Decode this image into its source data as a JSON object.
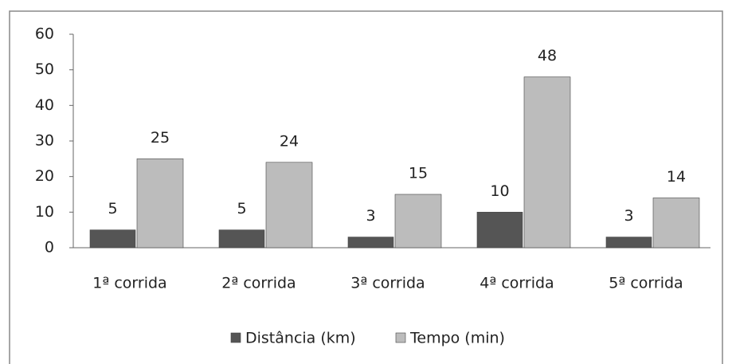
{
  "chart_data": {
    "type": "bar",
    "categories": [
      "1ª corrida",
      "2ª corrida",
      "3ª corrida",
      "4ª corrida",
      "5ª corrida"
    ],
    "series": [
      {
        "name": "Distância (km)",
        "color": "#555555",
        "values": [
          5,
          5,
          3,
          10,
          3
        ]
      },
      {
        "name": "Tempo (min)",
        "color": "#bcbcbc",
        "values": [
          25,
          24,
          15,
          48,
          14
        ]
      }
    ],
    "ylim": [
      0,
      60
    ],
    "yticks": [
      0,
      10,
      20,
      30,
      40,
      50,
      60
    ],
    "grid": false,
    "legend": "bottom"
  }
}
